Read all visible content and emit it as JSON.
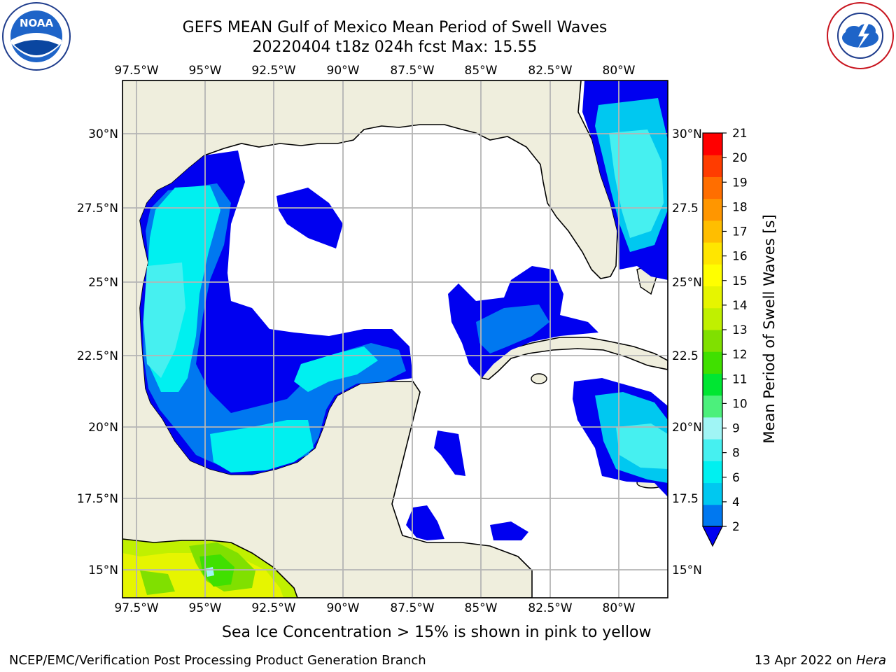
{
  "header": {
    "title_line1": "GEFS MEAN Gulf of Mexico Mean Period of Swell Waves",
    "title_line2": "20220404 t18z 024h fcst   Max: 15.55"
  },
  "logos": {
    "noaa": {
      "text": "NOAA",
      "ring_text": "NATIONAL OCEANIC AND ATMOSPHERIC ADMINISTRATION · U.S. DEPARTMENT OF COMMERCE"
    },
    "nws": {
      "ring_text": "NATIONAL WEATHER SERVICE"
    }
  },
  "map": {
    "lon_labels": [
      "97.5°W",
      "95°W",
      "92.5°W",
      "90°W",
      "87.5°W",
      "85°W",
      "82.5°W",
      "80°W"
    ],
    "lat_labels_left": [
      "30°N",
      "27.5°N",
      "25°N",
      "22.5°N",
      "20°N",
      "17.5°N",
      "15°N"
    ],
    "lat_labels_right": [
      "30°N",
      "27.5",
      "25°N",
      "22.5",
      "20°N",
      "17.5",
      "15°N"
    ],
    "colors": {
      "land": "#efeedd",
      "sea": "#ffffff",
      "grid": "#b4b4b4"
    }
  },
  "colorbar": {
    "label": "Mean Period of Swell Waves [s]",
    "ticks": [
      "2",
      "4",
      "6",
      "8",
      "9",
      "10",
      "11",
      "12",
      "13",
      "14",
      "15",
      "16",
      "17",
      "18",
      "19",
      "20",
      "21"
    ],
    "colors": [
      "#0000f0",
      "#0078f0",
      "#00c8f0",
      "#00f0f0",
      "#46f0f0",
      "#a0f5f5",
      "#4cf07c",
      "#00e632",
      "#40e000",
      "#80e000",
      "#c0f000",
      "#e6f500",
      "#ffff00",
      "#ffe600",
      "#ffbe00",
      "#ff9600",
      "#ff6e00",
      "#ff3c00",
      "#ff0000"
    ]
  },
  "bottom_caption": "Sea Ice Concentration > 15% is shown in pink to yellow",
  "footer": {
    "left": "NCEP/EMC/Verification Post Processing Product Generation Branch",
    "right_date": "13 Apr 2022 on ",
    "right_host": "Hera"
  }
}
